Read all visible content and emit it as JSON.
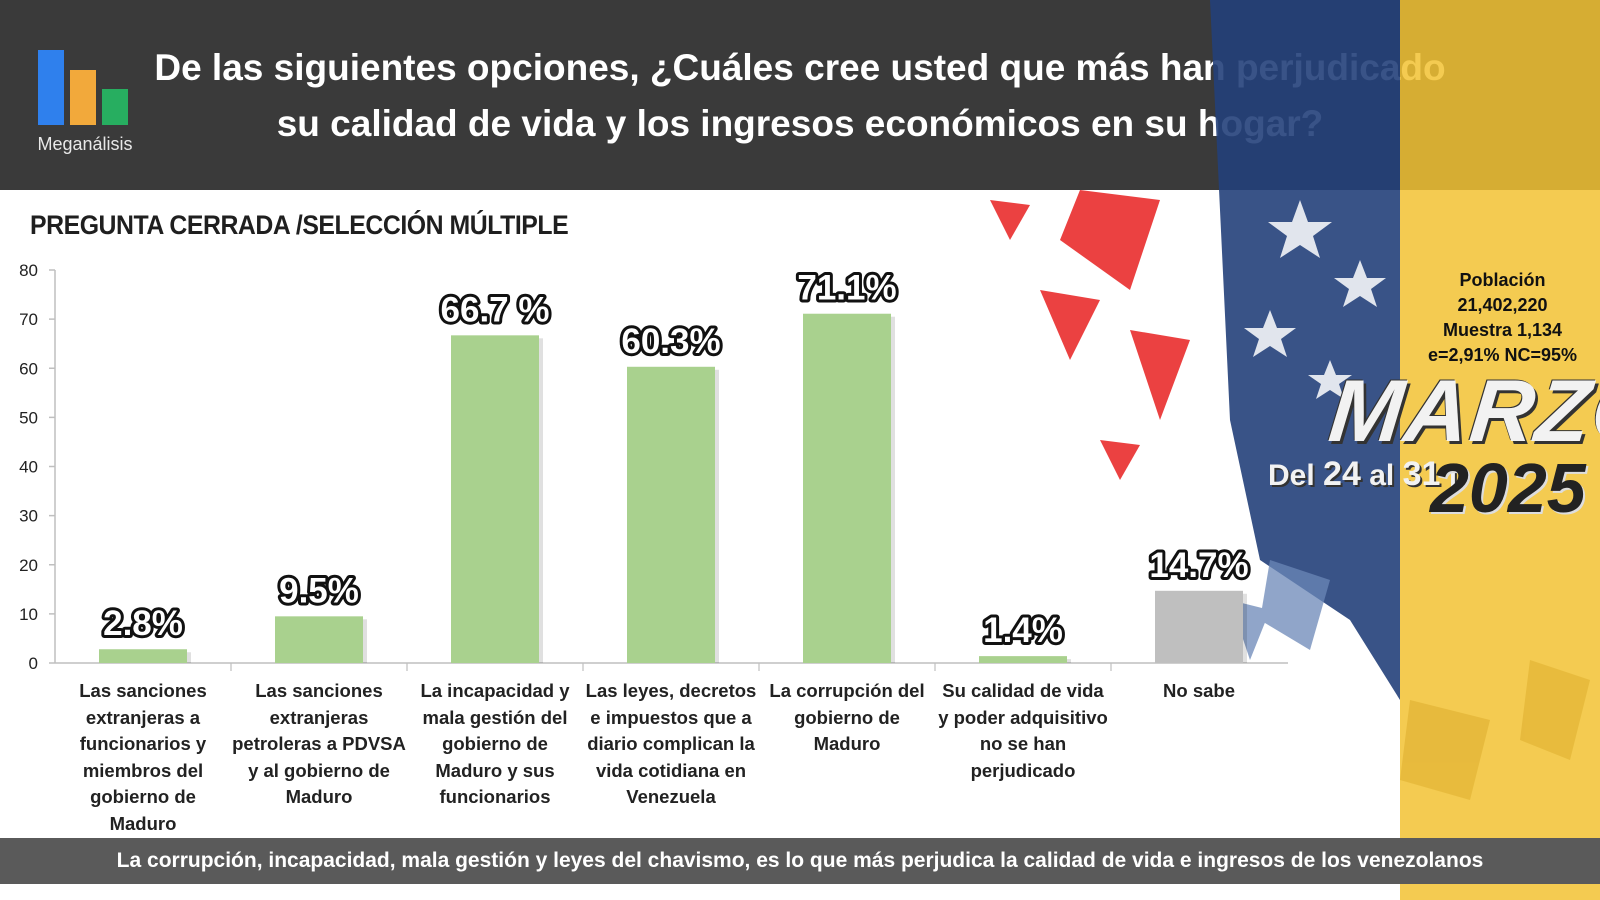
{
  "header": {
    "title_line1": "De las siguientes opciones, ¿Cuáles cree usted que más han perjudicado",
    "title_line2": "su calidad de vida y los ingresos económicos en su hogar?",
    "logo_text": "Meganálisis",
    "logo_colors": [
      "#2f80ed",
      "#f2a93b",
      "#27ae60"
    ]
  },
  "subtitle": "PREGUNTA CERRADA /SELECCIÓN MÚLTIPLE",
  "stats": {
    "poblacion_label": "Población",
    "poblacion_value": "21,402,220",
    "muestra": "Muestra 1,134",
    "error": "e=2,91%  NC=95%"
  },
  "date_banner": {
    "month": "MARZO",
    "del": "Del",
    "from": "24",
    "al": "al",
    "to": "31",
    "year": "2025"
  },
  "footer": "La corrupción, incapacidad, mala gestión y leyes del chavismo, es lo que más perjudica la calidad de vida e ingresos de los venezolanos",
  "chart_data": {
    "type": "bar",
    "categories": [
      [
        "Las sanciones",
        "extranjeras a",
        "funcionarios y",
        "miembros del",
        "gobierno de",
        "Maduro"
      ],
      [
        "Las sanciones",
        "extranjeras",
        "petroleras a PDVSA",
        "y al gobierno de",
        "Maduro"
      ],
      [
        "La incapacidad y",
        "mala gestión del",
        "gobierno de",
        "Maduro y sus",
        "funcionarios"
      ],
      [
        "Las leyes, decretos",
        "e impuestos que a",
        "diario complican la",
        "vida cotidiana en",
        "Venezuela"
      ],
      [
        "La corrupción del",
        "gobierno de",
        "Maduro"
      ],
      [
        "Su calidad de vida",
        "y poder adquisitivo",
        "no se han",
        "perjudicado"
      ],
      [
        "No sabe"
      ]
    ],
    "values": [
      2.8,
      9.5,
      66.7,
      60.3,
      71.1,
      1.4,
      14.7
    ],
    "data_labels": [
      "2.8%",
      "9.5%",
      "66.7 %",
      "60.3%",
      "71.1%",
      "1.4%",
      "14.7%"
    ],
    "bar_colors": [
      "#a9d18e",
      "#a9d18e",
      "#a9d18e",
      "#a9d18e",
      "#a9d18e",
      "#a9d18e",
      "#bfbfbf"
    ],
    "yticks": [
      0,
      10,
      20,
      30,
      40,
      50,
      60,
      70,
      80
    ],
    "ylim": [
      0,
      80
    ],
    "grid": false
  }
}
